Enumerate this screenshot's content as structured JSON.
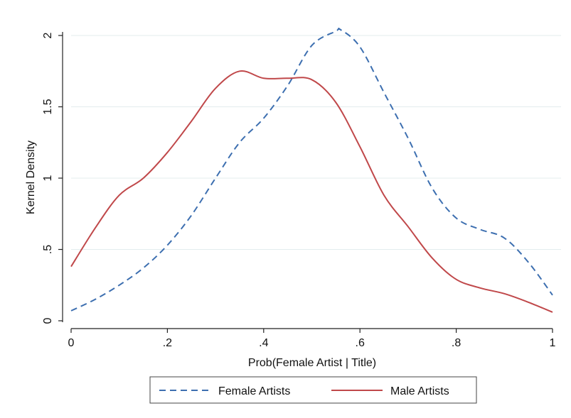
{
  "chart_data": {
    "type": "line",
    "title": "",
    "xlabel": "Prob(Female Artist | Title)",
    "ylabel": "Kernel Density",
    "xlim": [
      0,
      1
    ],
    "ylim": [
      0,
      2
    ],
    "x_ticks": [
      0,
      0.2,
      0.4,
      0.6,
      0.8,
      1
    ],
    "x_tick_labels": [
      "0",
      ".2",
      ".4",
      ".6",
      ".8",
      "1"
    ],
    "y_ticks": [
      0,
      0.5,
      1,
      1.5,
      2
    ],
    "y_tick_labels": [
      "0",
      ".5",
      "1",
      "1.5",
      "2"
    ],
    "grid": "horizontal",
    "legend_position": "bottom",
    "series": [
      {
        "name": "Female Artists",
        "style": "dashed",
        "color": "#3d6fb0",
        "x": [
          0,
          0.05,
          0.1,
          0.15,
          0.2,
          0.25,
          0.3,
          0.35,
          0.4,
          0.45,
          0.5,
          0.55,
          0.56,
          0.6,
          0.65,
          0.7,
          0.75,
          0.8,
          0.85,
          0.9,
          0.95,
          1.0
        ],
        "y": [
          0.07,
          0.15,
          0.25,
          0.37,
          0.53,
          0.74,
          1.0,
          1.25,
          1.42,
          1.65,
          1.93,
          2.03,
          2.04,
          1.92,
          1.6,
          1.28,
          0.93,
          0.72,
          0.64,
          0.58,
          0.41,
          0.18
        ]
      },
      {
        "name": "Male Artists",
        "style": "solid",
        "color": "#c0484a",
        "x": [
          0,
          0.05,
          0.1,
          0.15,
          0.2,
          0.25,
          0.3,
          0.35,
          0.4,
          0.45,
          0.5,
          0.55,
          0.6,
          0.65,
          0.7,
          0.75,
          0.8,
          0.85,
          0.9,
          0.95,
          1.0
        ],
        "y": [
          0.38,
          0.65,
          0.88,
          1.0,
          1.18,
          1.4,
          1.63,
          1.75,
          1.7,
          1.7,
          1.69,
          1.53,
          1.22,
          0.88,
          0.66,
          0.44,
          0.29,
          0.23,
          0.19,
          0.13,
          0.06
        ]
      }
    ]
  }
}
